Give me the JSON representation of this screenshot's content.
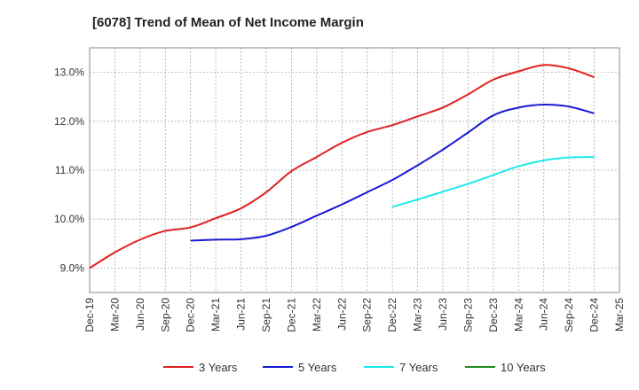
{
  "chart_data": {
    "type": "line",
    "title": "[6078]  Trend of Mean of Net Income Margin",
    "xlabel": "",
    "ylabel": "",
    "x_ticks": [
      "Dec-19",
      "Mar-20",
      "Jun-20",
      "Sep-20",
      "Dec-20",
      "Mar-21",
      "Jun-21",
      "Sep-21",
      "Dec-21",
      "Mar-22",
      "Jun-22",
      "Sep-22",
      "Dec-22",
      "Mar-23",
      "Jun-23",
      "Sep-23",
      "Dec-23",
      "Mar-24",
      "Jun-24",
      "Sep-24",
      "Dec-24",
      "Mar-25"
    ],
    "y_ticks": [
      "9.0%",
      "10.0%",
      "11.0%",
      "12.0%",
      "13.0%"
    ],
    "y_tick_values": [
      9.0,
      10.0,
      11.0,
      12.0,
      13.0
    ],
    "ylim": [
      8.5,
      13.5
    ],
    "grid": true,
    "legend_position": "bottom",
    "series": [
      {
        "name": "3 Years",
        "color": "#e02020",
        "start_index": 0,
        "values": [
          9.0,
          9.32,
          9.58,
          9.76,
          9.83,
          10.02,
          10.22,
          10.55,
          10.98,
          11.27,
          11.56,
          11.78,
          11.92,
          12.1,
          12.28,
          12.55,
          12.85,
          13.02,
          13.15,
          13.08,
          12.9
        ]
      },
      {
        "name": "5 Years",
        "color": "#1a1ad6",
        "start_index": 4,
        "values": [
          9.56,
          9.58,
          9.59,
          9.66,
          9.84,
          10.07,
          10.3,
          10.55,
          10.8,
          11.1,
          11.42,
          11.77,
          12.12,
          12.28,
          12.34,
          12.3,
          12.16
        ]
      },
      {
        "name": "7 Years",
        "color": "#1ee8ee",
        "start_index": 12,
        "values": [
          10.25,
          10.4,
          10.56,
          10.72,
          10.9,
          11.08,
          11.2,
          11.26,
          11.27
        ]
      },
      {
        "name": "10 Years",
        "color": "#228b22",
        "start_index": 0,
        "values": []
      }
    ]
  }
}
